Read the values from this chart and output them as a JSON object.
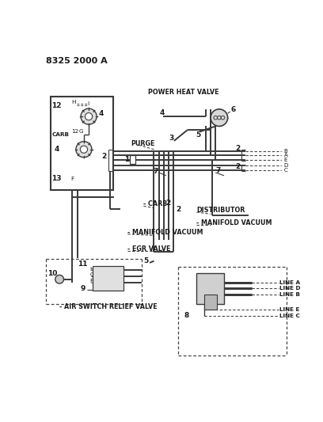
{
  "title": "8325 2000 A",
  "bg_color": "#ffffff",
  "line_color": "#3a3a3a",
  "text_color": "#1a1a1a",
  "dashed_color": "#444444",
  "labels": {
    "title": "8325 2000 A",
    "power_heat_valve": "POWER HEAT VALVE",
    "purge": "PURGE",
    "carb_main": "- CARB",
    "manifold_vacuum_left": "- MANIFOLD VACUUM",
    "egr_valve": "- EGR VALVE",
    "air_switch_relief_valve": "- AIR SWITCH RELIEF VALVE",
    "distributor": "DISTRIBUTOR",
    "manifold_vacuum_right": "- MANIFOLD VACUUM",
    "line_a": "LINE A",
    "line_d": "LINE D",
    "line_b": "LINE B",
    "line_e": "LINE E",
    "line_c": "LINE C",
    "carb_box": "CARB",
    "B": "- B",
    "A": "- A",
    "E": "- E",
    "D": "- D",
    "C": "- C"
  }
}
